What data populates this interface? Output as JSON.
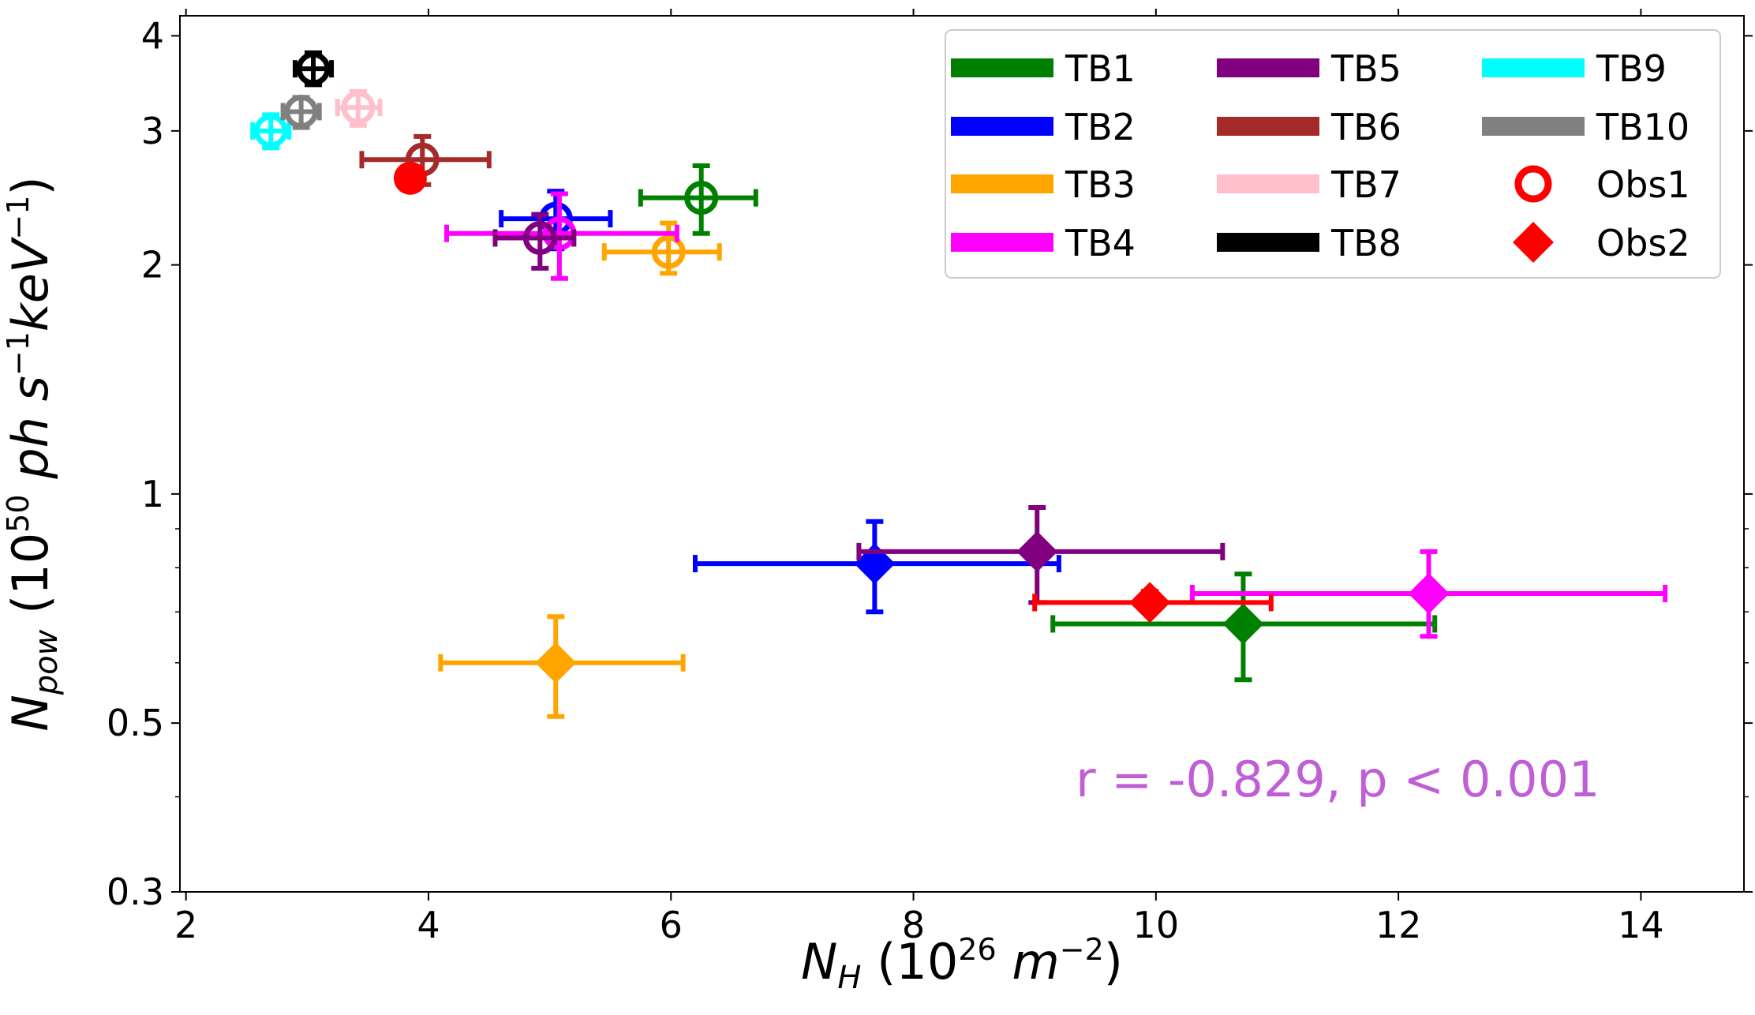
{
  "chart_data": {
    "type": "scatter",
    "xlabel": {
      "main": "N",
      "sub": "H",
      "pre": " (10",
      "sup1": "26",
      "mid": " m",
      "sup2": "−2",
      "post": ")"
    },
    "ylabel": {
      "main": "N",
      "sub": "pow",
      "pre": " (10",
      "sup1": "50",
      "mid": " ph s",
      "sup2": "−1",
      "mid2": "keV",
      "sup3": "−1",
      "post": ")"
    },
    "xlim": [
      1.95,
      14.85
    ],
    "ylim": [
      0.3,
      4.25
    ],
    "yscale": "log",
    "x_ticks": [
      2,
      4,
      6,
      8,
      10,
      12,
      14
    ],
    "x_tick_labels": [
      "2",
      "4",
      "6",
      "8",
      "10",
      "12",
      "14"
    ],
    "y_ticks": [
      0.3,
      0.5,
      1,
      2,
      3,
      4
    ],
    "y_tick_labels": [
      "0.3",
      "0.5",
      "1",
      "2",
      "3",
      "4"
    ],
    "y_minor_ticks": [
      0.4,
      0.6,
      0.7,
      0.8,
      0.9
    ],
    "annotation": "r = -0.829, p < 0.001",
    "annotation_color": "#bf5fd6",
    "legend": {
      "position": "top-right",
      "entries": [
        {
          "label": "TB1",
          "kind": "line",
          "color": "#008000"
        },
        {
          "label": "TB2",
          "kind": "line",
          "color": "#0000ff"
        },
        {
          "label": "TB3",
          "kind": "line",
          "color": "#ffa500"
        },
        {
          "label": "TB4",
          "kind": "line",
          "color": "#ff00ff"
        },
        {
          "label": "TB5",
          "kind": "line",
          "color": "#800080"
        },
        {
          "label": "TB6",
          "kind": "line",
          "color": "#a52a2a"
        },
        {
          "label": "TB7",
          "kind": "line",
          "color": "#ffc0cb"
        },
        {
          "label": "TB8",
          "kind": "line",
          "color": "#000000"
        },
        {
          "label": "TB9",
          "kind": "line",
          "color": "#00ffff"
        },
        {
          "label": "TB10",
          "kind": "line",
          "color": "#808080"
        },
        {
          "label": "Obs1",
          "kind": "circle",
          "color": "#ff0000"
        },
        {
          "label": "Obs2",
          "kind": "diamond",
          "color": "#ff0000"
        }
      ]
    },
    "series": [
      {
        "name": "TB1",
        "color": "#008000",
        "points": [
          {
            "marker": "circle",
            "x": 6.25,
            "y": 2.45,
            "xerr": [
              5.75,
              6.7
            ],
            "yerr": [
              2.2,
              2.7
            ]
          },
          {
            "marker": "diamond",
            "x": 10.72,
            "y": 0.675,
            "xerr": [
              9.15,
              12.3
            ],
            "yerr": [
              0.57,
              0.785
            ]
          }
        ]
      },
      {
        "name": "TB2",
        "color": "#0000ff",
        "points": [
          {
            "marker": "circle",
            "x": 5.05,
            "y": 2.3,
            "xerr": [
              4.6,
              5.5
            ],
            "yerr": [
              2.1,
              2.5
            ]
          },
          {
            "marker": "diamond",
            "x": 7.68,
            "y": 0.81,
            "xerr": [
              6.2,
              9.2
            ],
            "yerr": [
              0.7,
              0.92
            ]
          }
        ]
      },
      {
        "name": "TB3",
        "color": "#ffa500",
        "points": [
          {
            "marker": "circle",
            "x": 5.98,
            "y": 2.08,
            "xerr": [
              5.45,
              6.4
            ],
            "yerr": [
              1.95,
              2.27
            ]
          },
          {
            "marker": "diamond",
            "x": 5.05,
            "y": 0.6,
            "xerr": [
              4.1,
              6.1
            ],
            "yerr": [
              0.51,
              0.69
            ]
          }
        ]
      },
      {
        "name": "TB4",
        "color": "#ff00ff",
        "points": [
          {
            "marker": "circle",
            "x": 5.08,
            "y": 2.2,
            "xerr": [
              4.15,
              6.05
            ],
            "yerr": [
              1.92,
              2.48
            ]
          },
          {
            "marker": "diamond",
            "x": 12.25,
            "y": 0.74,
            "xerr": [
              10.3,
              14.2
            ],
            "yerr": [
              0.65,
              0.84
            ]
          }
        ]
      },
      {
        "name": "TB5",
        "color": "#800080",
        "points": [
          {
            "marker": "circle",
            "x": 4.92,
            "y": 2.17,
            "xerr": [
              4.55,
              5.2
            ],
            "yerr": [
              1.98,
              2.33
            ]
          },
          {
            "marker": "diamond",
            "x": 9.02,
            "y": 0.84,
            "xerr": [
              7.55,
              10.55
            ],
            "yerr": [
              0.72,
              0.96
            ]
          }
        ]
      },
      {
        "name": "TB6",
        "color": "#a52a2a",
        "points": [
          {
            "marker": "circle",
            "x": 3.95,
            "y": 2.75,
            "xerr": [
              3.45,
              4.5
            ],
            "yerr": [
              2.55,
              2.95
            ]
          }
        ]
      },
      {
        "name": "TB7",
        "color": "#ffc0cb",
        "points": [
          {
            "marker": "circle",
            "x": 3.42,
            "y": 3.22,
            "xerr": [
              3.25,
              3.6
            ],
            "yerr": [
              3.05,
              3.38
            ]
          }
        ]
      },
      {
        "name": "TB8",
        "color": "#000000",
        "points": [
          {
            "marker": "circle",
            "x": 3.05,
            "y": 3.62,
            "xerr": [
              2.9,
              3.2
            ],
            "yerr": [
              3.45,
              3.8
            ]
          }
        ]
      },
      {
        "name": "TB9",
        "color": "#00ffff",
        "points": [
          {
            "marker": "circle",
            "x": 2.7,
            "y": 3.0,
            "xerr": [
              2.55,
              2.85
            ],
            "yerr": [
              2.85,
              3.15
            ]
          }
        ]
      },
      {
        "name": "TB10",
        "color": "#808080",
        "points": [
          {
            "marker": "circle",
            "x": 2.95,
            "y": 3.18,
            "xerr": [
              2.8,
              3.1
            ],
            "yerr": [
              3.03,
              3.32
            ]
          }
        ]
      },
      {
        "name": "Obs1",
        "color": "#ff0000",
        "points": [
          {
            "marker": "filledcircle",
            "x": 3.85,
            "y": 2.6
          }
        ]
      },
      {
        "name": "Obs2",
        "color": "#ff0000",
        "points": [
          {
            "marker": "diamond",
            "x": 9.95,
            "y": 0.72,
            "xerr": [
              9.0,
              10.95
            ],
            "yerr": [
              0.7,
              0.745
            ]
          }
        ]
      }
    ]
  }
}
